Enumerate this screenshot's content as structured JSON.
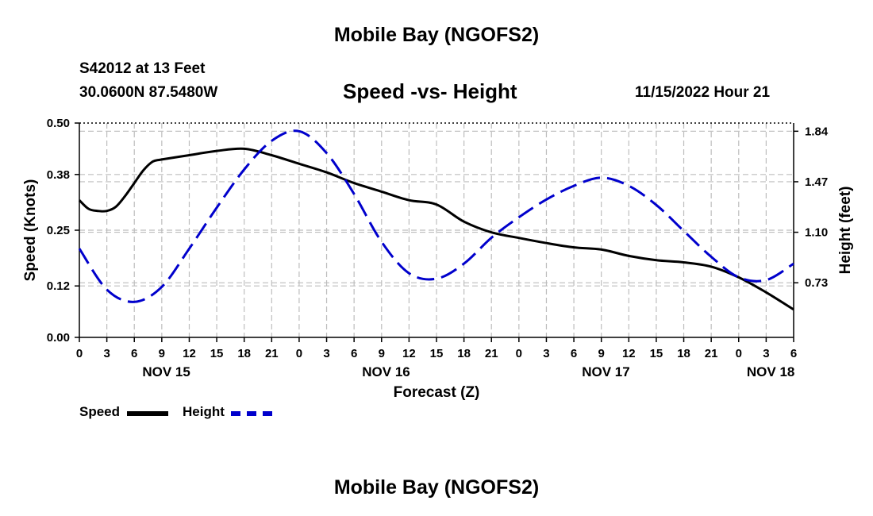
{
  "header": {
    "title": "Mobile Bay (NGOFS2)",
    "station": "S42012 at 13 Feet",
    "coords": "30.0600N  87.5480W",
    "chart_title": "Speed -vs- Height",
    "forecast_time": "11/15/2022 Hour 21"
  },
  "footer": {
    "title": "Mobile Bay (NGOFS2)"
  },
  "legend": {
    "speed_label": "Speed",
    "height_label": "Height",
    "speed_color": "#000000",
    "height_color": "#0000cc"
  },
  "chart_data": {
    "type": "line",
    "title": "Speed -vs- Height",
    "xlabel": "Forecast (Z)",
    "ylabel": "Speed (Knots)",
    "y2label": "Height (feet)",
    "x_unit": "hours since NOV 15 00Z",
    "xlim": [
      0,
      78
    ],
    "ylim": [
      0,
      0.5
    ],
    "y2lim": [
      0.33,
      1.9
    ],
    "y_ticks": [
      0.0,
      0.12,
      0.25,
      0.38,
      0.5
    ],
    "y_tick_labels": [
      "0.00",
      "0.12",
      "0.25",
      "0.38",
      "0.50"
    ],
    "y2_ticks": [
      0.73,
      1.1,
      1.47,
      1.84
    ],
    "y2_tick_labels": [
      "0.73",
      "1.10",
      "1.47",
      "1.84"
    ],
    "x_ticks": [
      0,
      3,
      6,
      9,
      12,
      15,
      18,
      21,
      24,
      27,
      30,
      33,
      36,
      39,
      42,
      45,
      48,
      51,
      54,
      57,
      60,
      63,
      66,
      69,
      72,
      75,
      78
    ],
    "x_tick_labels": [
      "0",
      "3",
      "6",
      "9",
      "12",
      "15",
      "18",
      "21",
      "0",
      "3",
      "6",
      "9",
      "12",
      "15",
      "18",
      "21",
      "0",
      "3",
      "6",
      "9",
      "12",
      "15",
      "18",
      "21",
      "0",
      "3",
      "6"
    ],
    "day_labels": [
      {
        "x": 9.5,
        "label": "NOV 15"
      },
      {
        "x": 33.5,
        "label": "NOV 16"
      },
      {
        "x": 57.5,
        "label": "NOV 17"
      },
      {
        "x": 75.5,
        "label": "NOV 18"
      }
    ],
    "grid": true,
    "series": [
      {
        "name": "Speed",
        "axis": "left",
        "color": "#000000",
        "style": "solid",
        "x": [
          0,
          1,
          2,
          3,
          4,
          5,
          6,
          7,
          8,
          9,
          12,
          15,
          18,
          21,
          24,
          27,
          30,
          33,
          36,
          39,
          42,
          45,
          48,
          51,
          54,
          57,
          60,
          63,
          66,
          69,
          72,
          75,
          78
        ],
        "values": [
          0.32,
          0.3,
          0.295,
          0.295,
          0.305,
          0.33,
          0.36,
          0.39,
          0.41,
          0.415,
          0.425,
          0.435,
          0.44,
          0.425,
          0.405,
          0.385,
          0.36,
          0.34,
          0.32,
          0.31,
          0.27,
          0.245,
          0.232,
          0.22,
          0.21,
          0.205,
          0.19,
          0.18,
          0.175,
          0.165,
          0.14,
          0.105,
          0.065
        ]
      },
      {
        "name": "Height",
        "axis": "right",
        "color": "#0000cc",
        "style": "dashed",
        "x": [
          0,
          3,
          6,
          9,
          12,
          15,
          18,
          21,
          24,
          27,
          30,
          33,
          36,
          39,
          42,
          45,
          48,
          51,
          54,
          57,
          60,
          63,
          66,
          69,
          72,
          75,
          78
        ],
        "values": [
          0.98,
          0.68,
          0.59,
          0.7,
          0.98,
          1.28,
          1.56,
          1.77,
          1.84,
          1.68,
          1.38,
          1.03,
          0.8,
          0.76,
          0.87,
          1.06,
          1.21,
          1.34,
          1.44,
          1.5,
          1.44,
          1.3,
          1.11,
          0.92,
          0.77,
          0.75,
          0.87
        ]
      }
    ],
    "legend": [
      "Speed",
      "Height"
    ],
    "legend_position": "bottom-left"
  }
}
